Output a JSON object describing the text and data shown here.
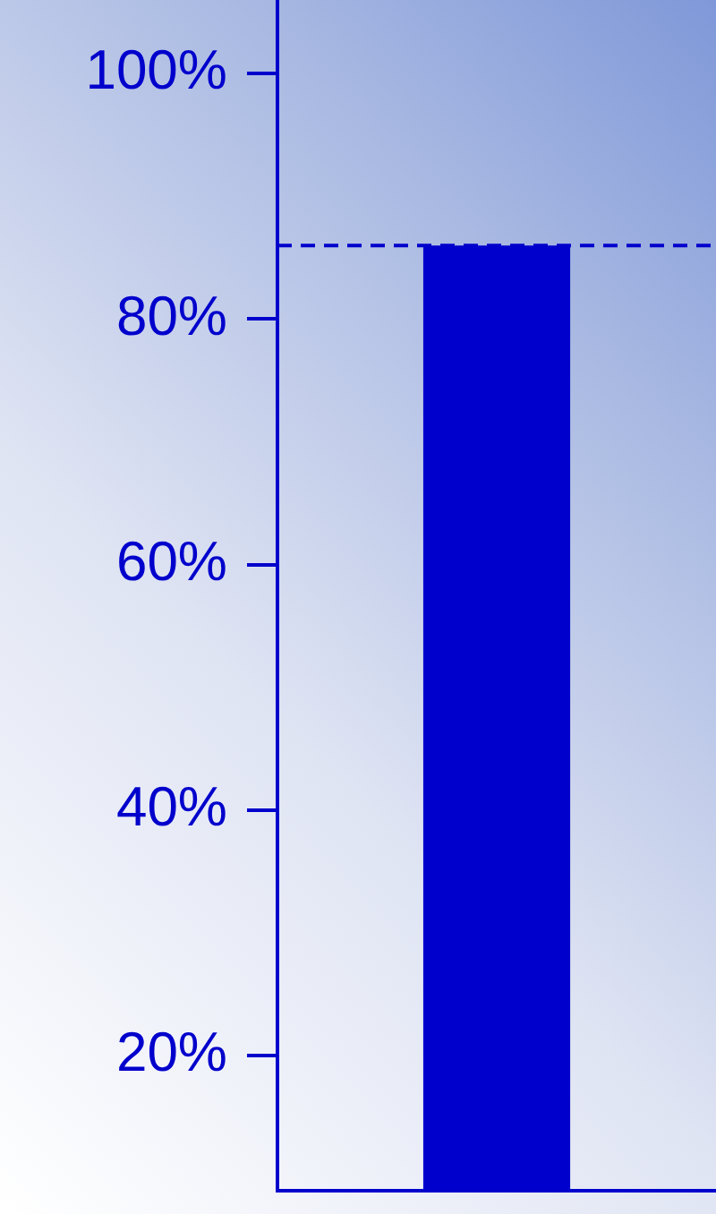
{
  "chart_data": {
    "type": "bar",
    "categories": [
      null
    ],
    "values": [
      86
    ],
    "color": "#0000cc",
    "ylim": [
      9,
      106
    ],
    "yticks": [
      {
        "value": 20,
        "label": "20%"
      },
      {
        "value": 40,
        "label": "40%"
      },
      {
        "value": 60,
        "label": "60%"
      },
      {
        "value": 80,
        "label": "80%"
      },
      {
        "value": 100,
        "label": "100%"
      }
    ],
    "ref_lines": [
      {
        "axis": "y",
        "value": 86,
        "color": "#0000cc",
        "line_style": "dashed"
      }
    ],
    "grid": false,
    "tick_labels": "y"
  }
}
